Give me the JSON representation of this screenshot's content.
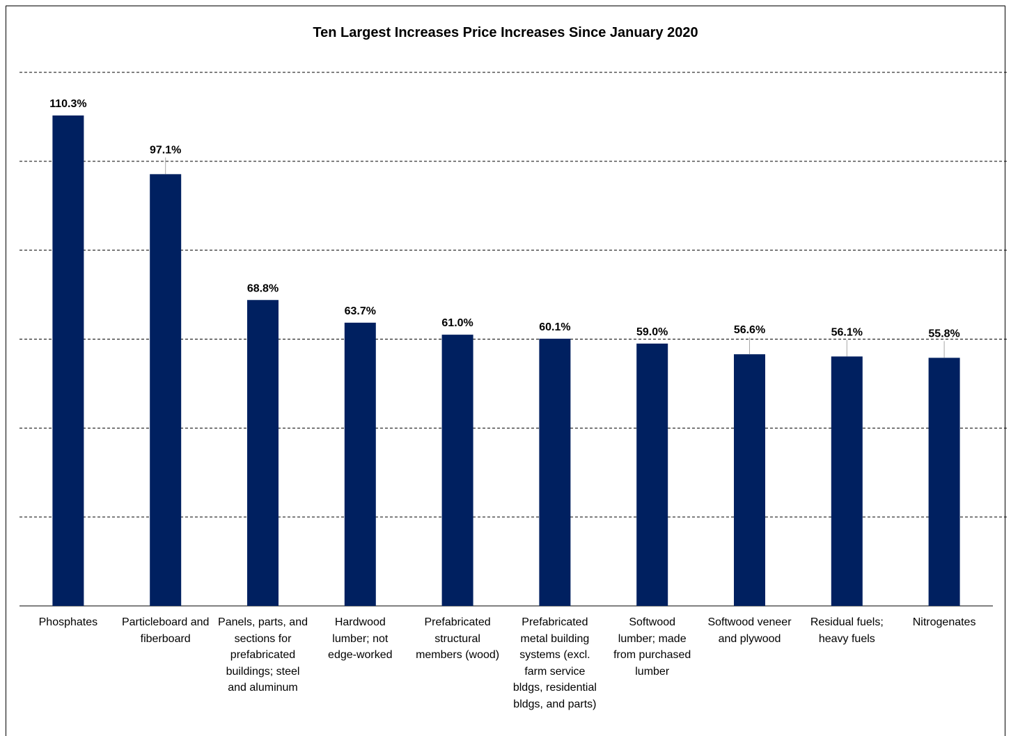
{
  "chart_data": {
    "type": "bar",
    "title": "Ten Largest Increases Price Increases Since January 2020",
    "xlabel": "",
    "ylabel": "",
    "ylim": [
      0,
      120
    ],
    "grid": true,
    "categories": [
      "Phosphates",
      "Particleboard and fiberboard",
      "Panels, parts, and sections for prefabricated buildings; steel and aluminum",
      "Hardwood lumber; not edge-worked",
      "Prefabricated structural members (wood)",
      "Prefabricated metal building systems (excl. farm service bldgs, residential bldgs, and parts)",
      "Softwood lumber; made from purchased lumber",
      "Softwood veneer and plywood",
      "Residual fuels; heavy fuels",
      "Nitrogenates"
    ],
    "category_lines": [
      "Phosphates",
      "Particleboard and\nfiberboard",
      "Panels, parts, and\nsections for\nprefabricated\nbuildings; steel\nand aluminum",
      "Hardwood\nlumber; not\nedge-worked",
      "Prefabricated\nstructural\nmembers (wood)",
      "Prefabricated\nmetal building\nsystems (excl.\nfarm service\nbldgs, residential\nbldgs, and parts)",
      "Softwood\nlumber; made\nfrom purchased\nlumber",
      "Softwood veneer\nand plywood",
      "Residual fuels;\nheavy fuels",
      "Nitrogenates"
    ],
    "values": [
      110.3,
      97.1,
      68.8,
      63.7,
      61.0,
      60.1,
      59.0,
      56.6,
      56.1,
      55.8
    ],
    "data_labels": [
      "110.3%",
      "97.1%",
      "68.8%",
      "63.7%",
      "61.0%",
      "60.1%",
      "59.0%",
      "56.6%",
      "56.1%",
      "55.8%"
    ],
    "label_leader_lines": [
      false,
      true,
      false,
      false,
      false,
      false,
      false,
      true,
      true,
      true
    ],
    "colors": {
      "bar": "#002060",
      "grid": "#000000",
      "axis": "#000000",
      "leader": "#a6a6a6"
    }
  }
}
